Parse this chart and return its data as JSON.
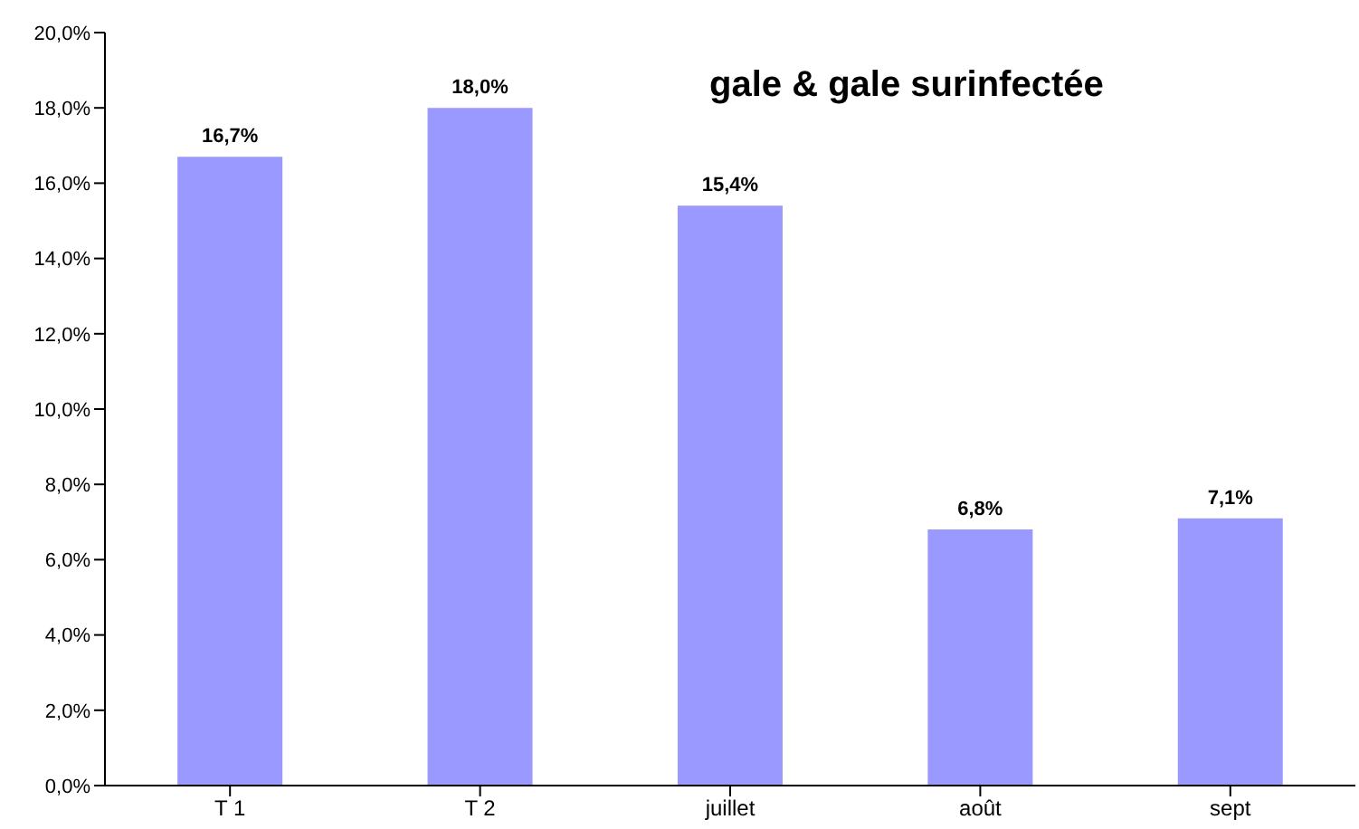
{
  "chart_data": {
    "type": "bar",
    "title": "gale & gale surinfectée",
    "categories": [
      "T 1",
      "T 2",
      "juillet",
      "août",
      "sept"
    ],
    "values": [
      16.7,
      18.0,
      15.4,
      6.8,
      7.1
    ],
    "color": "#9999ff",
    "value_labels": [
      "16,7%",
      "18,0%",
      "15,4%",
      "6,8%",
      "7,1%"
    ],
    "ylim": [
      0,
      20
    ],
    "yticks": [
      {
        "value": 0,
        "label": "0,0%"
      },
      {
        "value": 2,
        "label": "2,0%"
      },
      {
        "value": 4,
        "label": "4,0%"
      },
      {
        "value": 6,
        "label": "6,0%"
      },
      {
        "value": 8,
        "label": "8,0%"
      },
      {
        "value": 10,
        "label": "10,0%"
      },
      {
        "value": 12,
        "label": "12,0%"
      },
      {
        "value": 14,
        "label": "14,0%"
      },
      {
        "value": 16,
        "label": "16,0%"
      },
      {
        "value": 18,
        "label": "18,0%"
      },
      {
        "value": 20,
        "label": "20,0%"
      }
    ],
    "grid": false,
    "legend": false
  }
}
